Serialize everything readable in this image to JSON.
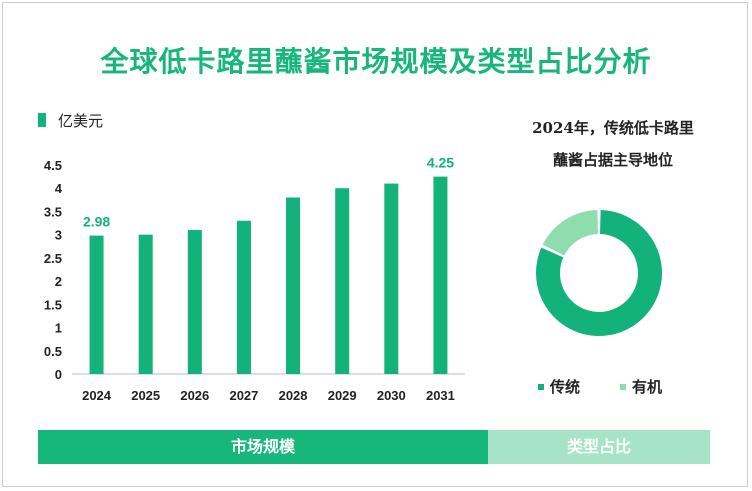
{
  "title": "全球低卡路里蘸酱市场规模及类型占比分析",
  "colors": {
    "primary": "#13b27b",
    "light": "#8fdcae",
    "tab_primary": "#17b67a",
    "tab_light": "#a7e4c7"
  },
  "chart_data": [
    {
      "type": "bar",
      "legend": "亿美元",
      "categories": [
        "2024",
        "2025",
        "2026",
        "2027",
        "2028",
        "2029",
        "2030",
        "2031"
      ],
      "values": [
        2.98,
        3.0,
        3.1,
        3.3,
        3.8,
        4.0,
        4.1,
        4.25
      ],
      "data_labels": [
        {
          "index": 0,
          "text": "2.98"
        },
        {
          "index": 7,
          "text": "4.25"
        }
      ],
      "ylim": [
        0,
        4.5
      ],
      "yticks": [
        "0",
        "0.5",
        "1",
        "1.5",
        "2",
        "2.5",
        "3",
        "3.5",
        "4",
        "4.5"
      ],
      "grid": false
    },
    {
      "type": "pie",
      "title_line1": "2024年，传统低卡路里",
      "title_line2": "蘸酱占据主导地位",
      "slices": [
        {
          "label": "传统",
          "value": 82
        },
        {
          "label": "有机",
          "value": 18
        }
      ]
    }
  ],
  "tabs": {
    "left": "市场规模",
    "right": "类型占比"
  }
}
